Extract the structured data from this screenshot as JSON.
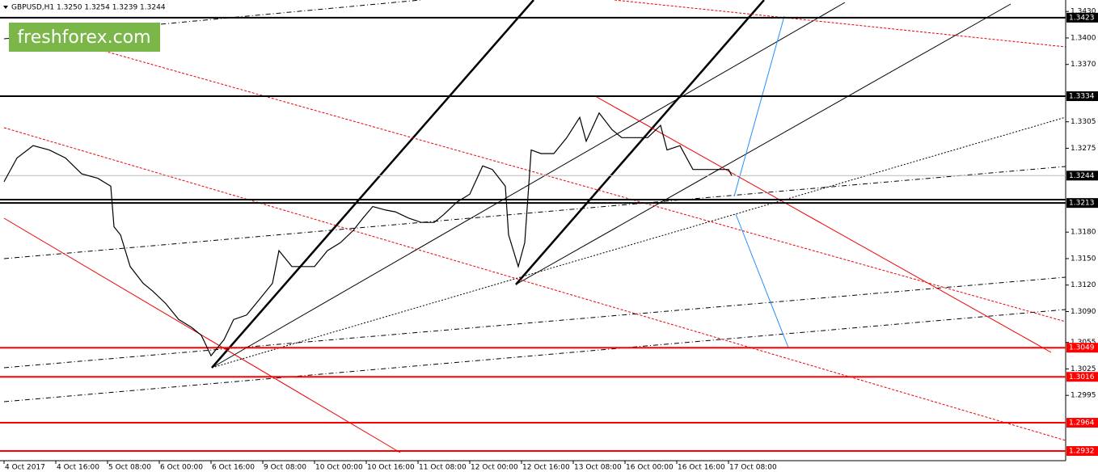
{
  "header": {
    "symbol": "GBPUSD,H1",
    "ohlc": "1.3250 1.3254 1.3239 1.3244",
    "logo": "freshforex.com"
  },
  "chart_data": {
    "type": "line",
    "xlim": [
      -1.25,
      328.25
    ],
    "xticks": [
      {
        "value": 0,
        "label": "4 Oct 2017"
      },
      {
        "value": 16,
        "label": "4 Oct 16:00"
      },
      {
        "value": 32,
        "label": "5 Oct 08:00"
      },
      {
        "value": 48,
        "label": "6 Oct 00:00"
      },
      {
        "value": 64,
        "label": "6 Oct 16:00"
      },
      {
        "value": 80,
        "label": "9 Oct 08:00"
      },
      {
        "value": 96,
        "label": "10 Oct 00:00"
      },
      {
        "value": 112,
        "label": "10 Oct 16:00"
      },
      {
        "value": 128,
        "label": "11 Oct 08:00"
      },
      {
        "value": 144,
        "label": "12 Oct 00:00"
      },
      {
        "value": 160,
        "label": "12 Oct 16:00"
      },
      {
        "value": 176,
        "label": "13 Oct 08:00"
      },
      {
        "value": 192,
        "label": "16 Oct 00:00"
      },
      {
        "value": 208,
        "label": "16 Oct 16:00"
      },
      {
        "value": 224,
        "label": "17 Oct 08:00"
      }
    ],
    "ylim": [
      1.2921,
      1.3443
    ],
    "yticks": [
      {
        "value": 1.343,
        "label": "1.3430"
      },
      {
        "value": 1.34,
        "label": "1.3400"
      },
      {
        "value": 1.337,
        "label": "1.3370"
      },
      1.3305,
      1.3275,
      {
        "value": 1.318,
        "label": "1.3180"
      },
      {
        "value": 1.315,
        "label": "1.3150"
      },
      {
        "value": 1.312,
        "label": "1.3120"
      },
      {
        "value": 1.309,
        "label": "1.3090"
      },
      1.3055,
      1.3025,
      1.2995
    ],
    "levels": [
      {
        "value": 1.3423,
        "color": "#000000"
      },
      {
        "value": 1.3334,
        "color": "#000000"
      },
      {
        "value": 1.3244,
        "color": "#000000"
      },
      {
        "value": 1.3213,
        "color": "#000000"
      },
      {
        "value": 1.3049,
        "color": "#ff0000"
      },
      {
        "value": 1.3016,
        "color": "#ff0000"
      },
      {
        "value": 1.2964,
        "color": "#ff0000"
      },
      {
        "value": 1.2932,
        "color": "#ff0000"
      }
    ],
    "series": [
      {
        "color": "#000000",
        "x": [
          0,
          4,
          9,
          14,
          19,
          24,
          29,
          33,
          34,
          36,
          39,
          43,
          46,
          50,
          54,
          58,
          61,
          64,
          68,
          71,
          75,
          79,
          83,
          85,
          89,
          93,
          96,
          100,
          104,
          108,
          111,
          114,
          118,
          121,
          125,
          129,
          133,
          136,
          140,
          144,
          148,
          151,
          155,
          156,
          159,
          161,
          163,
          166,
          170,
          174,
          178,
          180,
          184,
          188,
          191,
          195,
          199,
          203,
          205,
          209,
          213,
          216,
          220,
          224,
          225
        ],
        "values": [
          1.3237,
          1.3264,
          1.3278,
          1.3273,
          1.3264,
          1.3246,
          1.3241,
          1.3232,
          1.3186,
          1.3177,
          1.3141,
          1.3122,
          1.3113,
          1.3099,
          1.3081,
          1.3072,
          1.3063,
          1.304,
          1.3058,
          1.3081,
          1.3086,
          1.3104,
          1.3122,
          1.3159,
          1.3141,
          1.3141,
          1.3141,
          1.3159,
          1.3168,
          1.3182,
          1.3196,
          1.3209,
          1.3205,
          1.3203,
          1.3196,
          1.3191,
          1.3191,
          1.32,
          1.3214,
          1.3223,
          1.3255,
          1.3251,
          1.3232,
          1.3177,
          1.3141,
          1.3168,
          1.3273,
          1.3269,
          1.3269,
          1.3287,
          1.331,
          1.3283,
          1.3315,
          1.3296,
          1.3287,
          1.3287,
          1.3287,
          1.3301,
          1.3273,
          1.3278,
          1.3251,
          1.3251,
          1.3251,
          1.3251,
          1.3244
        ]
      }
    ]
  }
}
